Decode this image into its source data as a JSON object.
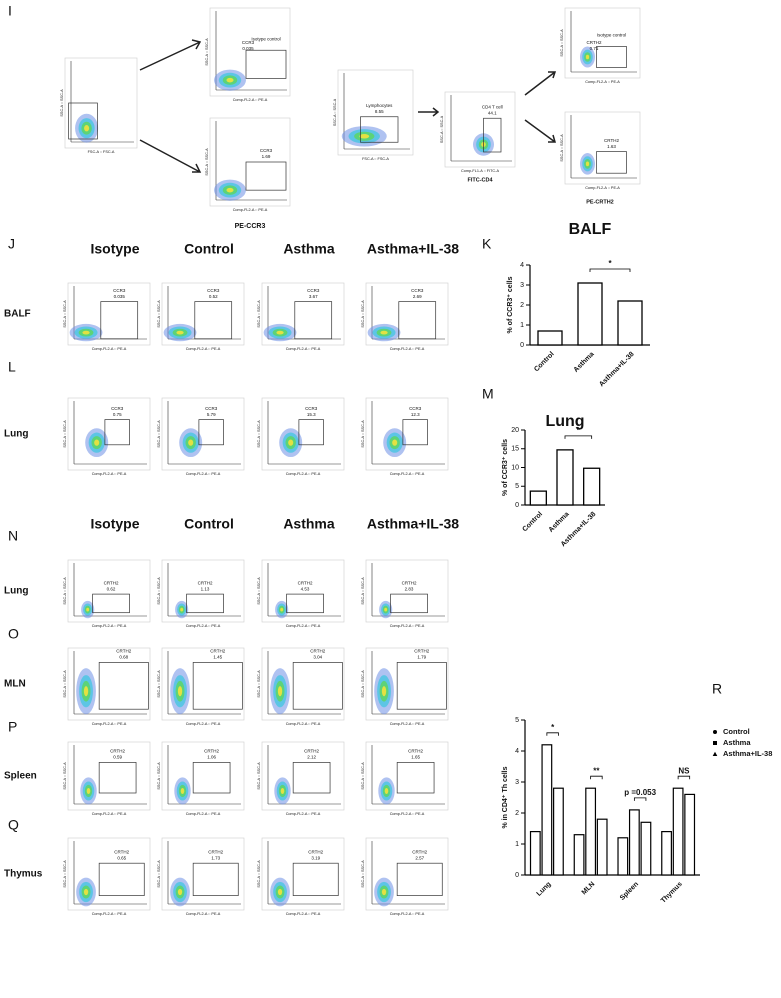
{
  "figure": {
    "panel_labels": [
      "I",
      "J",
      "K",
      "L",
      "M",
      "N",
      "O",
      "P",
      "Q",
      "R"
    ],
    "column_headers": [
      "Isotype",
      "Control",
      "Asthma",
      "Asthma+IL-38"
    ],
    "row_labels": [
      "BALF",
      "Lung",
      "Lung",
      "MLN",
      "Spleen",
      "Thymus"
    ],
    "gate_names": [
      "CCR3",
      "CRTH2"
    ],
    "axis_labels": {
      "ssc": "SSC-A :: SSC-A",
      "fsc": "FSC-A :: FSC-A",
      "pe": "Comp-FL2-A :: PE-A",
      "fitc": "Comp-FL1-A :: FITC-A"
    },
    "panel_I": {
      "isotype_label": "Isotype control",
      "ccr3_isotype": "0.035",
      "ccr3": "1.69",
      "lymphocytes_label": "Lymphocytes",
      "lymphocytes": "8.55",
      "cd4_label": "CD4 T cell",
      "cd4": "44.1",
      "crth2_isotype": "0.71",
      "crth2": "1.63",
      "channels": [
        "PE-CCR3",
        "FITC-CD4",
        "PE-CRTH2"
      ]
    },
    "gate_values": [
      [
        "0.035",
        "0.52",
        "3.67",
        "2.69"
      ],
      [
        "0.75",
        "5.79",
        "15.3",
        "12.3"
      ],
      [
        "0.62",
        "1.13",
        "4.53",
        "2.83"
      ],
      [
        "0.68",
        "1.45",
        "3.04",
        "1.79"
      ],
      [
        "0.59",
        "1.06",
        "2.12",
        "1.65"
      ],
      [
        "0.65",
        "1.73",
        "3.19",
        "2.57"
      ]
    ]
  },
  "chart_data": [
    {
      "type": "bar",
      "title": "BALF",
      "y_label": "% of CCR3⁺ cells",
      "categories": [
        "Control",
        "Asthma",
        "Asthma+IL-38"
      ],
      "values": [
        0.7,
        3.1,
        2.2
      ],
      "color": "#ffffff",
      "ylim": [
        0,
        4
      ],
      "yticks": [
        0,
        1,
        2,
        3,
        4
      ],
      "annotations": [
        "*"
      ]
    },
    {
      "type": "bar",
      "title": "Lung",
      "y_label": "% of CCR3⁺ cells",
      "categories": [
        "Control",
        "Asthma",
        "Asthma+IL-38"
      ],
      "values": [
        3.7,
        14.7,
        9.8
      ],
      "color": "#ffffff",
      "ylim": [
        0,
        20
      ],
      "yticks": [
        0,
        5,
        10,
        15,
        20
      ],
      "annotations": [
        "*"
      ]
    },
    {
      "type": "grouped_bar",
      "y_label": "% in CD4⁺ Th cells",
      "categories": [
        "Lung",
        "MLN",
        "Spleen",
        "Thymus"
      ],
      "series": [
        {
          "name": "Control",
          "color": "#ffffff",
          "values": [
            1.4,
            1.3,
            1.2,
            1.4
          ]
        },
        {
          "name": "Asthma",
          "color": "#ffffff",
          "values": [
            4.2,
            2.8,
            2.1,
            2.8
          ]
        },
        {
          "name": "Asthma+IL-38",
          "color": "#ffffff",
          "values": [
            2.8,
            1.8,
            1.7,
            2.6
          ]
        }
      ],
      "ylim": [
        0,
        5
      ],
      "yticks": [
        0,
        1,
        2,
        3,
        4,
        5
      ],
      "annotations": [
        "*",
        "**",
        "p =0.053",
        "NS"
      ],
      "legend": "right"
    }
  ]
}
